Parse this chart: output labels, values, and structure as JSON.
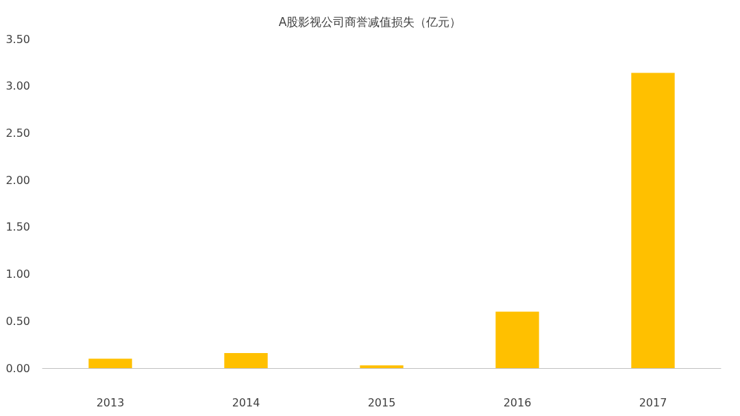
{
  "chart_data": {
    "type": "bar",
    "title": "A股影视公司商誉减值损失（亿元）",
    "categories": [
      "2013",
      "2014",
      "2015",
      "2016",
      "2017"
    ],
    "values": [
      0.1,
      0.16,
      0.03,
      0.6,
      3.14
    ],
    "color": "#ffc000",
    "ylim": [
      0,
      3.5
    ],
    "yticks": [
      {
        "value": 0,
        "label": "0.00"
      },
      {
        "value": 0.5,
        "label": "0.50"
      },
      {
        "value": 1,
        "label": "1.00"
      },
      {
        "value": 1.5,
        "label": "1.50"
      },
      {
        "value": 2,
        "label": "2.00"
      },
      {
        "value": 2.5,
        "label": "2.50"
      },
      {
        "value": 3,
        "label": "3.00"
      },
      {
        "value": 3.5,
        "label": "3.50"
      }
    ],
    "grid": false
  }
}
